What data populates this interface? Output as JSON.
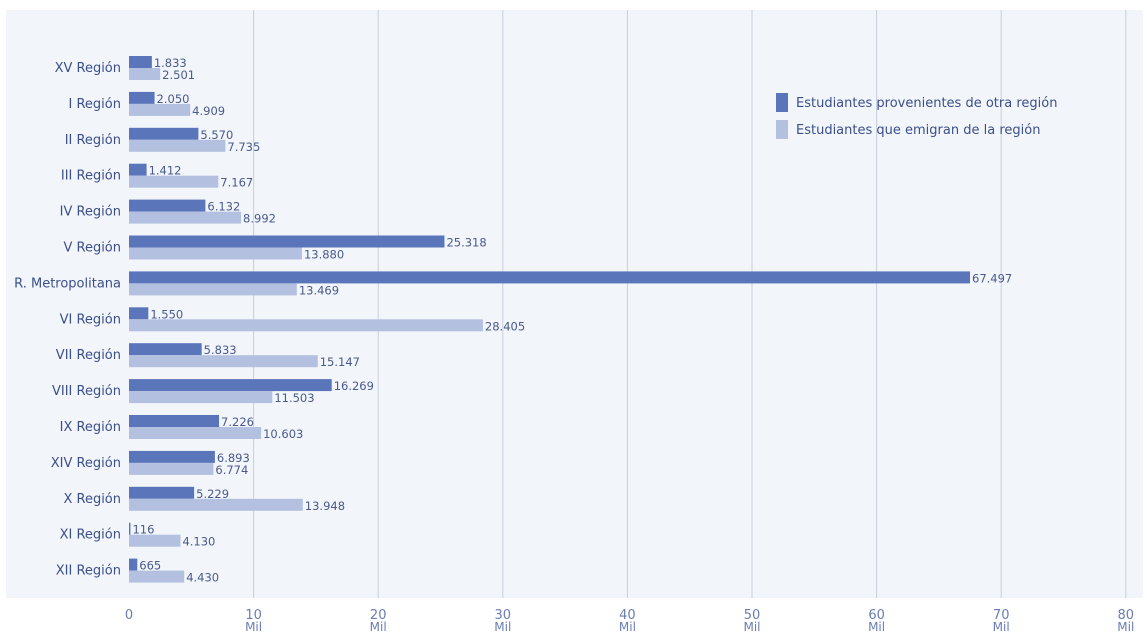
{
  "chart_data": {
    "type": "bar",
    "orientation": "horizontal",
    "categories": [
      "XV Región",
      "I Región",
      "II Región",
      "III Región",
      "IV Región",
      "V Región",
      "R. Metropolitana",
      "VI Región",
      "VII Región",
      "VIII Región",
      "IX Región",
      "XIV Región",
      "X Región",
      "XI Región",
      "XII Región"
    ],
    "series": [
      {
        "name": "Estudiantes provenientes de otra región",
        "color": "#5b75bb",
        "values": [
          1833,
          2050,
          5570,
          1412,
          6132,
          25318,
          67497,
          1550,
          5833,
          16269,
          7226,
          6893,
          5229,
          116,
          665
        ],
        "labels": [
          "1.833",
          "2.050",
          "5.570",
          "1.412",
          "6.132",
          "25.318",
          "67.497",
          "1.550",
          "5.833",
          "16.269",
          "7.226",
          "6.893",
          "5.229",
          "116",
          "665"
        ]
      },
      {
        "name": "Estudiantes que emigran de la región",
        "color": "#b4c0e0",
        "values": [
          2501,
          4909,
          7735,
          7167,
          8992,
          13880,
          13469,
          28405,
          15147,
          11503,
          10603,
          6774,
          13948,
          4130,
          4430
        ],
        "labels": [
          "2.501",
          "4.909",
          "7.735",
          "7.167",
          "8.992",
          "13.880",
          "13.469",
          "28.405",
          "15.147",
          "11.503",
          "10.603",
          "6.774",
          "13.948",
          "4.130",
          "4.430"
        ]
      }
    ],
    "xlim": [
      0,
      80000
    ],
    "ticks": [
      0,
      10000,
      20000,
      30000,
      40000,
      50000,
      60000,
      70000,
      80000
    ],
    "tick_labels": [
      "0",
      "10",
      "20",
      "30",
      "40",
      "50",
      "60",
      "70",
      "80"
    ],
    "tick_unit": "Mil",
    "grid": true,
    "legend_position": "top-right",
    "title": "",
    "xlabel": "",
    "ylabel": ""
  },
  "colors": {
    "plot_background": "#f2f5fa",
    "gridline": "#c9cfdc",
    "series_1": "#5b75bb",
    "series_2": "#b4c0e0"
  }
}
